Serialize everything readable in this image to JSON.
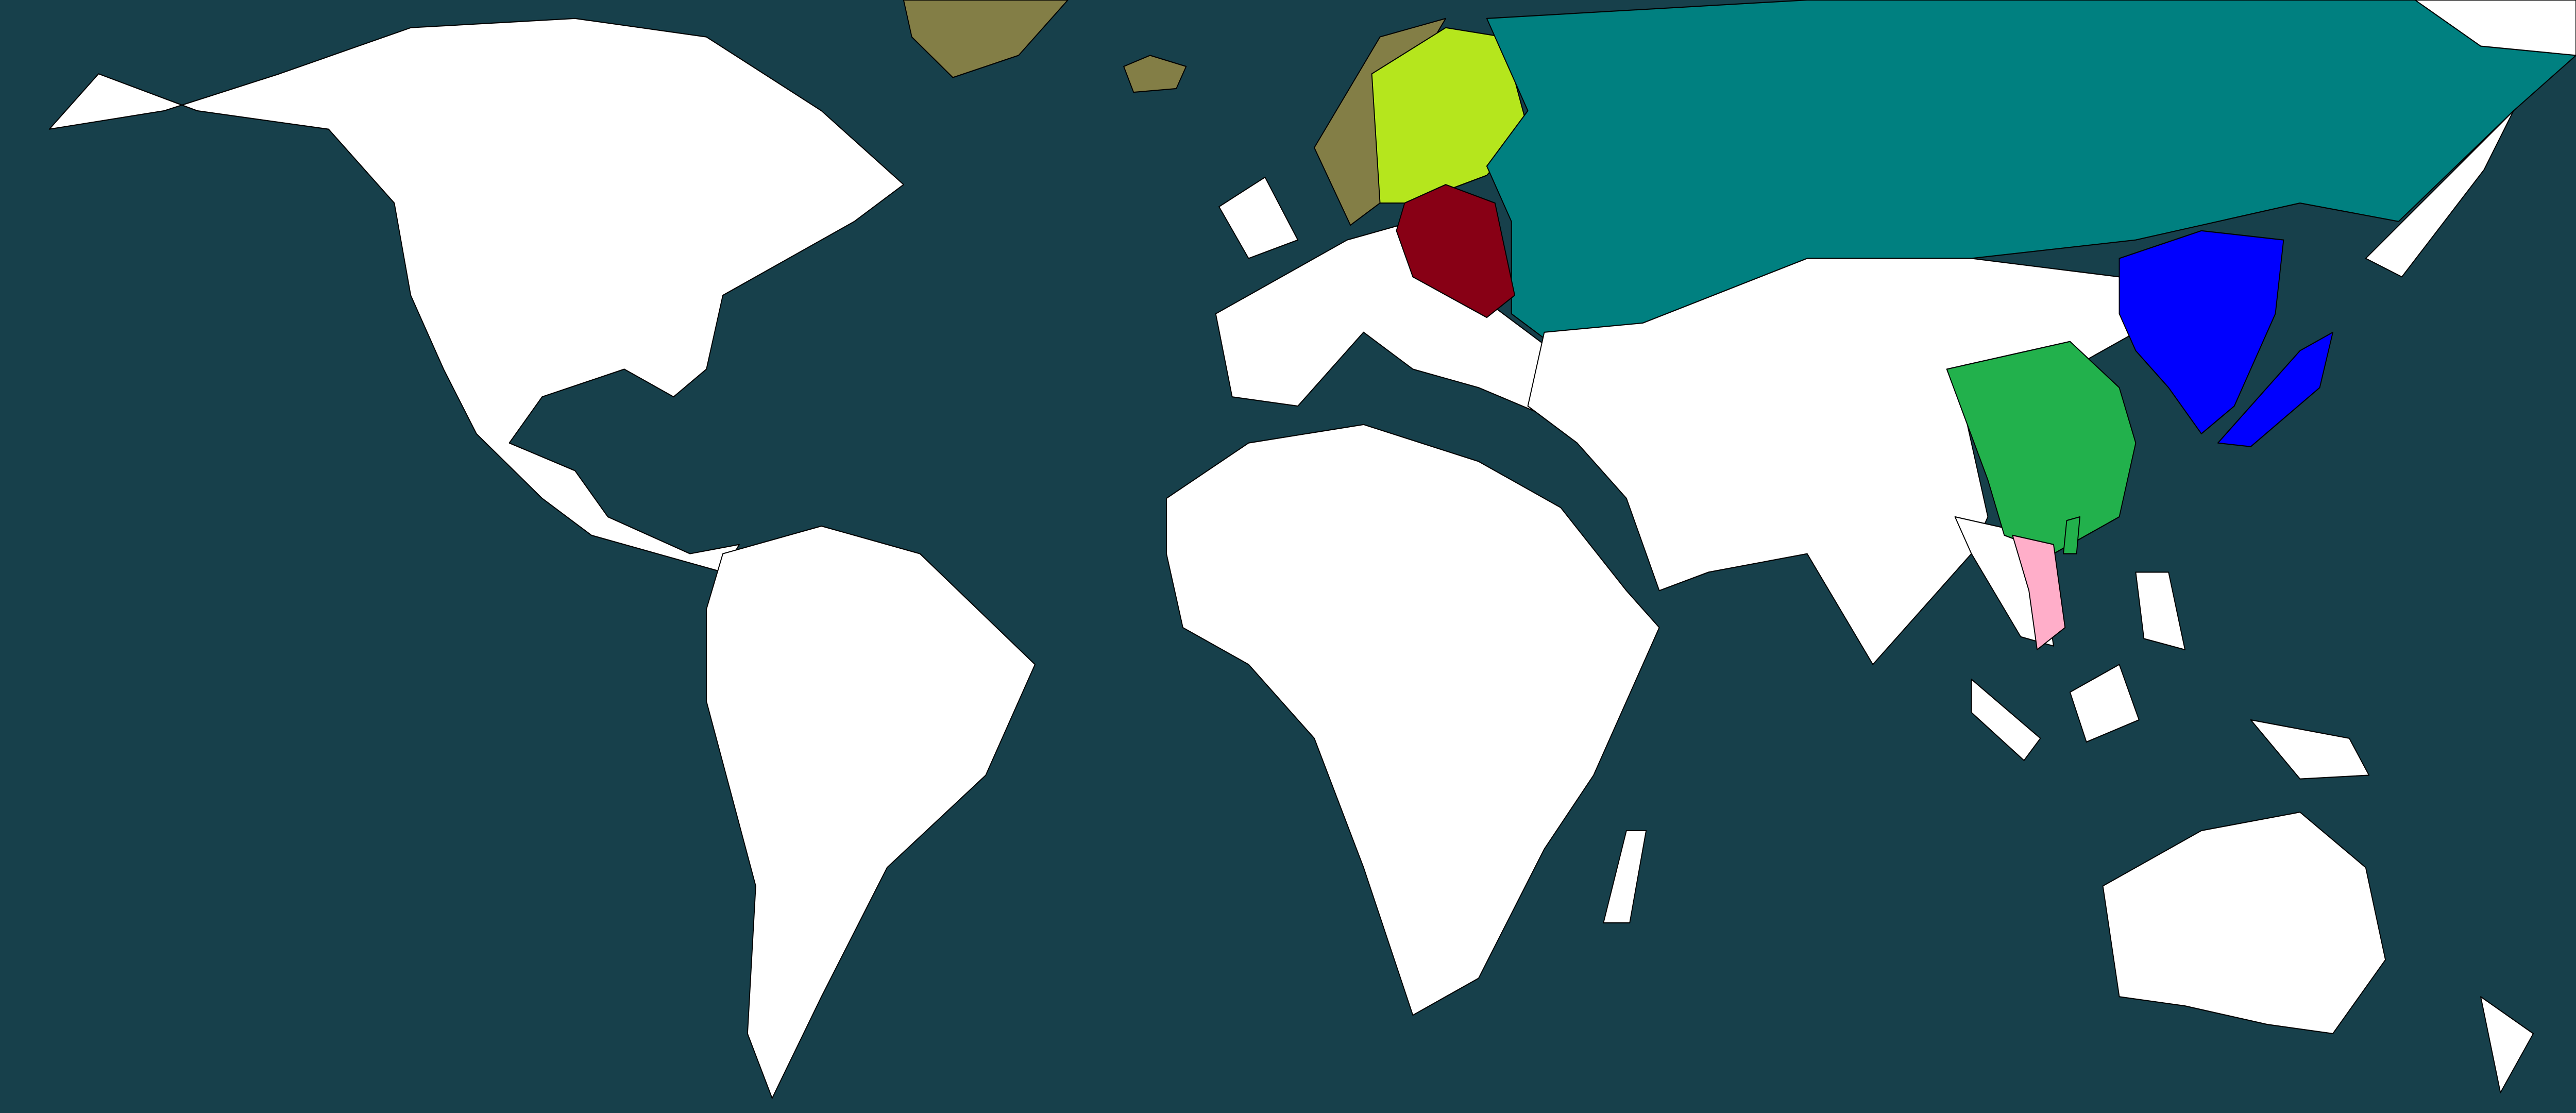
{
  "map": {
    "colors": {
      "ocean": "#17404b",
      "unclaimed": "#ffffff",
      "olive": "#837e46",
      "yellow_green": "#b5e61d",
      "teal": "#008080",
      "dark_red": "#880015",
      "blue": "#0000ff",
      "green": "#22b14c",
      "pink": "#ffaec9",
      "border": "#000000"
    },
    "regions": [
      {
        "key": "north-america",
        "color": "unclaimed"
      },
      {
        "key": "greenland",
        "color": "olive"
      },
      {
        "key": "iceland",
        "color": "olive"
      },
      {
        "key": "south-america",
        "color": "unclaimed"
      },
      {
        "key": "africa",
        "color": "unclaimed"
      },
      {
        "key": "madagascar",
        "color": "unclaimed"
      },
      {
        "key": "europe",
        "color": "unclaimed"
      },
      {
        "key": "british-isles",
        "color": "unclaimed"
      },
      {
        "key": "norway",
        "color": "olive"
      },
      {
        "key": "sweden-finland",
        "color": "yellow_green"
      },
      {
        "key": "russia",
        "color": "teal"
      },
      {
        "key": "chukotka",
        "color": "unclaimed"
      },
      {
        "key": "poland",
        "color": "dark_red"
      },
      {
        "key": "central-asia",
        "color": "unclaimed"
      },
      {
        "key": "southeast-asia",
        "color": "unclaimed"
      },
      {
        "key": "china",
        "color": "green"
      },
      {
        "key": "vietnam",
        "color": "pink"
      },
      {
        "key": "manchuria-korea",
        "color": "blue"
      },
      {
        "key": "japan",
        "color": "blue"
      },
      {
        "key": "kamchatka",
        "color": "unclaimed"
      },
      {
        "key": "australia",
        "color": "unclaimed"
      },
      {
        "key": "borneo",
        "color": "unclaimed"
      },
      {
        "key": "sumatra",
        "color": "unclaimed"
      },
      {
        "key": "new-guinea",
        "color": "unclaimed"
      },
      {
        "key": "new-zealand",
        "color": "unclaimed"
      },
      {
        "key": "philippines",
        "color": "unclaimed"
      },
      {
        "key": "taiwan",
        "color": "green"
      }
    ]
  }
}
